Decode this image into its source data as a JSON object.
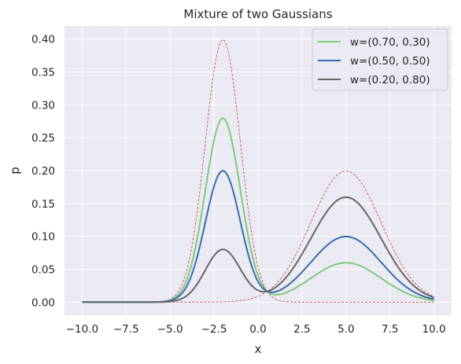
{
  "chart_data": {
    "type": "line",
    "title": "Mixture of two Gaussians",
    "xlabel": "x",
    "ylabel": "p",
    "xlim": [
      -11,
      11
    ],
    "ylim": [
      -0.02,
      0.42
    ],
    "xticks": [
      -10.0,
      -7.5,
      -5.0,
      -2.5,
      0.0,
      2.5,
      5.0,
      7.5,
      10.0
    ],
    "xtick_labels": [
      "−10.0",
      "−7.5",
      "−5.0",
      "−2.5",
      "0.0",
      "2.5",
      "5.0",
      "7.5",
      "10.0"
    ],
    "yticks": [
      0.0,
      0.05,
      0.1,
      0.15,
      0.2,
      0.25,
      0.3,
      0.35,
      0.4
    ],
    "ytick_labels": [
      "0.00",
      "0.05",
      "0.10",
      "0.15",
      "0.20",
      "0.25",
      "0.30",
      "0.35",
      "0.40"
    ],
    "grid": true,
    "background": "#eaeaf2",
    "legend_position": "top-right",
    "components": [
      {
        "mean": -2,
        "std": 1,
        "peak": 0.3989
      },
      {
        "mean": 5,
        "std": 2,
        "peak": 0.1995
      }
    ],
    "x_range": [
      -10,
      10
    ],
    "series": [
      {
        "name": "w=(0.70, 0.30)",
        "weights": [
          0.7,
          0.3
        ],
        "color": "#7fc97f",
        "style": "solid",
        "peaks": [
          0.279,
          0.06
        ]
      },
      {
        "name": "w=(0.50, 0.50)",
        "weights": [
          0.5,
          0.5
        ],
        "color": "#386cb0",
        "style": "solid",
        "peaks": [
          0.2,
          0.1
        ]
      },
      {
        "name": "w=(0.20, 0.80)",
        "weights": [
          0.2,
          0.8
        ],
        "color": "#666666",
        "style": "solid",
        "peaks": [
          0.081,
          0.16
        ]
      }
    ],
    "component_curves_color": "#c44e52"
  }
}
